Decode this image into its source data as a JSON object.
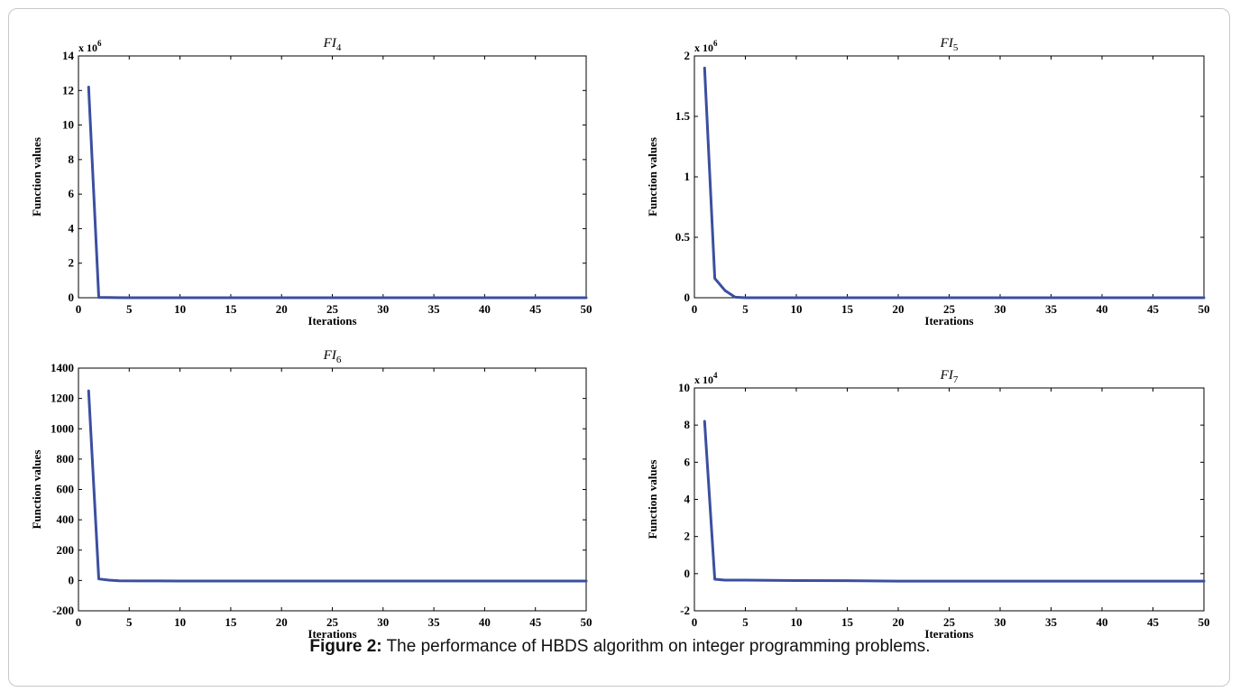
{
  "caption": {
    "label": "Figure 2:",
    "text": "The performance of HBDS algorithm on integer programming problems."
  },
  "colors": {
    "line": "#3b4fa0",
    "axis": "#000000"
  },
  "chart_data": [
    {
      "type": "line",
      "title_base": "FI",
      "title_sub": "4",
      "xlabel": "Iterations",
      "ylabel": "Function values",
      "xlim": [
        0,
        50
      ],
      "ylim": [
        0,
        14
      ],
      "exponent_label": "x 10",
      "exponent_power": "6",
      "xticks": [
        0,
        5,
        10,
        15,
        20,
        25,
        30,
        35,
        40,
        45,
        50
      ],
      "yticks": [
        0,
        2,
        4,
        6,
        8,
        10,
        12,
        14
      ],
      "x": [
        1,
        2,
        3,
        5,
        10,
        20,
        30,
        40,
        50
      ],
      "y": [
        12.2,
        0.02,
        0.01,
        0.0,
        0.0,
        0.0,
        0.0,
        0.0,
        0.0
      ]
    },
    {
      "type": "line",
      "title_base": "FI",
      "title_sub": "5",
      "xlabel": "Iterations",
      "ylabel": "Function values",
      "xlim": [
        0,
        50
      ],
      "ylim": [
        0,
        2
      ],
      "exponent_label": "x 10",
      "exponent_power": "6",
      "xticks": [
        0,
        5,
        10,
        15,
        20,
        25,
        30,
        35,
        40,
        45,
        50
      ],
      "yticks": [
        0,
        0.5,
        1,
        1.5,
        2
      ],
      "x": [
        1,
        2,
        3,
        4,
        5,
        10,
        20,
        30,
        40,
        50
      ],
      "y": [
        1.9,
        0.16,
        0.06,
        0.005,
        0.0,
        0.0,
        0.0,
        0.0,
        0.0,
        0.0
      ]
    },
    {
      "type": "line",
      "title_base": "FI",
      "title_sub": "6",
      "xlabel": "Iterations",
      "ylabel": "Function values",
      "xlim": [
        0,
        50
      ],
      "ylim": [
        -200,
        1400
      ],
      "exponent_label": "",
      "exponent_power": "",
      "xticks": [
        0,
        5,
        10,
        15,
        20,
        25,
        30,
        35,
        40,
        45,
        50
      ],
      "yticks": [
        -200,
        0,
        200,
        400,
        600,
        800,
        1000,
        1200,
        1400
      ],
      "x": [
        1,
        2,
        3,
        4,
        6,
        8,
        10,
        20,
        30,
        40,
        50
      ],
      "y": [
        1250,
        10,
        2,
        -2,
        -3,
        -3,
        -4,
        -4,
        -4,
        -4,
        -4
      ]
    },
    {
      "type": "line",
      "title_base": "FI",
      "title_sub": "7",
      "xlabel": "Iterations",
      "ylabel": "Function values",
      "xlim": [
        0,
        50
      ],
      "ylim": [
        -2,
        10
      ],
      "exponent_label": "x 10",
      "exponent_power": "4",
      "xticks": [
        0,
        5,
        10,
        15,
        20,
        25,
        30,
        35,
        40,
        45,
        50
      ],
      "yticks": [
        -2,
        0,
        2,
        4,
        6,
        8,
        10
      ],
      "x": [
        1,
        2,
        3,
        5,
        10,
        15,
        20,
        30,
        40,
        50
      ],
      "y": [
        8.2,
        -0.3,
        -0.35,
        -0.35,
        -0.37,
        -0.38,
        -0.4,
        -0.4,
        -0.4,
        -0.4
      ]
    }
  ]
}
